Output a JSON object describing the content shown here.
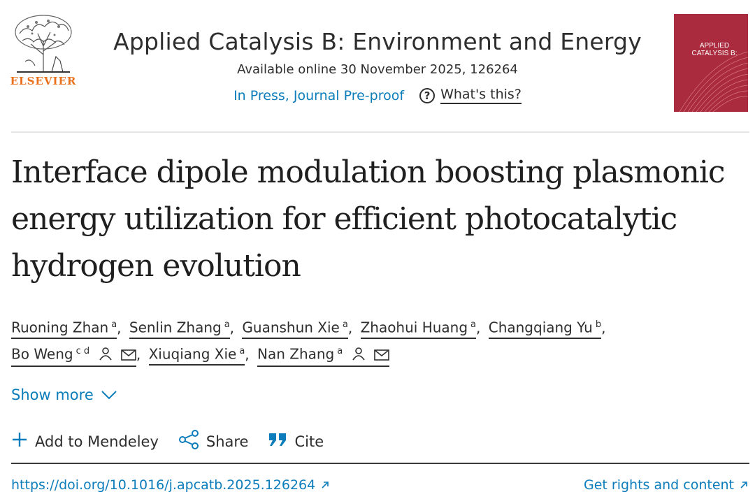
{
  "publisher": {
    "name": "ELSEVIER"
  },
  "journal": {
    "title": "Applied Catalysis B: Environment and Energy",
    "availability": "Available online 30 November 2025, 126264",
    "status": "In Press, Journal Pre-proof",
    "whats_this": "What's this?"
  },
  "cover": {
    "title_line1": "APPLIED",
    "title_line2": "CATALYSIS B:"
  },
  "article": {
    "title": "Interface dipole modulation boosting plasmonic energy utilization for efficient photocatalytic hydrogen evolution"
  },
  "authors": [
    {
      "name": "Ruoning Zhan",
      "aff": "a"
    },
    {
      "name": "Senlin Zhang",
      "aff": "a"
    },
    {
      "name": "Guanshun Xie",
      "aff": "a"
    },
    {
      "name": "Zhaohui Huang",
      "aff": "a"
    },
    {
      "name": "Changqiang Yu",
      "aff": "b"
    },
    {
      "name": "Bo Weng",
      "aff": "c d"
    },
    {
      "name": "Xiuqiang Xie",
      "aff": "a"
    },
    {
      "name": "Nan Zhang",
      "aff": "a"
    }
  ],
  "show_more": "Show more",
  "actions": {
    "mendeley": "Add to Mendeley",
    "share": "Share",
    "cite": "Cite"
  },
  "doi": "https://doi.org/10.1016/j.apcatb.2025.126264",
  "rights": "Get rights and content",
  "colors": {
    "link": "#0c7dbb",
    "brand": "#e9711c",
    "cover": "#a92b3d"
  }
}
